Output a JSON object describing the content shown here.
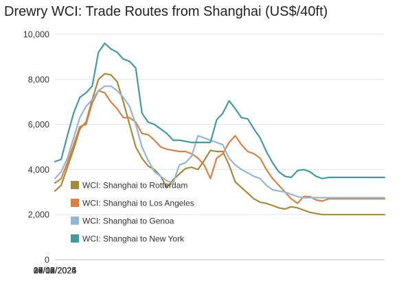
{
  "chart_data": {
    "type": "line",
    "title": "Drewry WCI: Trade Routes from Shanghai (US$/40ft)",
    "xlabel": "",
    "ylabel": "",
    "ylim": [
      0,
      10000
    ],
    "grid": true,
    "legend_position": "bottom-left",
    "y_ticks": [
      "0",
      "2,000",
      "4,000",
      "6,000",
      "8,000",
      "10,000"
    ],
    "x_ticks": [
      "06/05/2024",
      "03/07/2024",
      "30/08/2024",
      "27/10/2024",
      "24/12/2024",
      "19/02/2025",
      "18/04/2025"
    ],
    "x": [
      "06/05/2024",
      "13/05/2024",
      "20/05/2024",
      "27/05/2024",
      "03/06/2024",
      "10/06/2024",
      "17/06/2024",
      "24/06/2024",
      "01/07/2024",
      "08/07/2024",
      "15/07/2024",
      "22/07/2024",
      "29/07/2024",
      "05/08/2024",
      "12/08/2024",
      "19/08/2024",
      "26/08/2024",
      "02/09/2024",
      "09/09/2024",
      "16/09/2024",
      "23/09/2024",
      "30/09/2024",
      "07/10/2024",
      "14/10/2024",
      "21/10/2024",
      "28/10/2024",
      "04/11/2024",
      "11/11/2024",
      "18/11/2024",
      "25/11/2024",
      "02/12/2024",
      "09/12/2024",
      "16/12/2024",
      "23/12/2024",
      "30/12/2024",
      "06/01/2025",
      "13/01/2025",
      "20/01/2025",
      "27/01/2025",
      "03/02/2025",
      "10/02/2025",
      "17/02/2025",
      "24/02/2025",
      "03/03/2025",
      "10/03/2025",
      "17/03/2025",
      "24/03/2025",
      "31/03/2025",
      "07/04/2025",
      "14/04/2025",
      "21/04/2025",
      "28/04/2025",
      "05/05/2025",
      "12/05/2025"
    ],
    "series": [
      {
        "name": "WCI: Shanghai to Rotterdam",
        "color": "#a68a35",
        "values": [
          3050,
          3300,
          4100,
          4900,
          5800,
          6100,
          7100,
          8000,
          8250,
          8200,
          7900,
          7000,
          6000,
          5000,
          4500,
          4150,
          4000,
          3700,
          3200,
          3550,
          3800,
          4050,
          4100,
          4000,
          4400,
          4850,
          4800,
          4800,
          4200,
          3450,
          3200,
          2950,
          2700,
          2550,
          2500,
          2400,
          2300,
          2250,
          2350,
          2300,
          2200,
          2100,
          2050,
          2000,
          2000,
          2000,
          2000,
          2000,
          2000,
          2000,
          2000,
          2000,
          2000,
          2000
        ]
      },
      {
        "name": "WCI: Shanghai to Los Angeles",
        "color": "#de7f3e",
        "values": [
          3400,
          3600,
          4300,
          5100,
          5900,
          6000,
          6950,
          7500,
          7400,
          7000,
          6700,
          6300,
          6300,
          6100,
          5600,
          5550,
          5300,
          5000,
          4900,
          4850,
          4800,
          4800,
          4700,
          4500,
          4200,
          3600,
          4500,
          4700,
          5200,
          5500,
          5100,
          4800,
          4700,
          4500,
          4000,
          3600,
          3300,
          3000,
          2700,
          2500,
          2800,
          2800,
          2650,
          2600,
          2700,
          2700,
          2700,
          2700,
          2700,
          2700,
          2700,
          2700,
          2700,
          2700
        ]
      },
      {
        "name": "WCI: Shanghai to Genoa",
        "color": "#92b6d8",
        "values": [
          3600,
          3900,
          4500,
          5400,
          6300,
          6800,
          7100,
          7500,
          7700,
          7700,
          7500,
          7200,
          6800,
          6000,
          5000,
          4400,
          3900,
          3700,
          3500,
          3400,
          4200,
          4300,
          4600,
          5500,
          5400,
          5300,
          5200,
          5100,
          4500,
          4200,
          4000,
          3850,
          3700,
          3600,
          3300,
          3100,
          3050,
          3000,
          2900,
          2800,
          2750,
          2750,
          2750,
          2750,
          2750,
          2750,
          2750,
          2750,
          2750,
          2750,
          2750,
          2750,
          2750,
          2750
        ]
      },
      {
        "name": "WCI: Shanghai to New York",
        "color": "#3e9c9e",
        "values": [
          4350,
          4450,
          5500,
          6500,
          7200,
          7400,
          7700,
          9200,
          9600,
          9350,
          9200,
          8900,
          8800,
          8500,
          6500,
          6100,
          6000,
          5800,
          5600,
          5300,
          5300,
          5250,
          5200,
          5200,
          5200,
          5200,
          6200,
          6500,
          7050,
          6700,
          6300,
          6250,
          5800,
          5400,
          4800,
          4300,
          3900,
          3700,
          3650,
          3950,
          4000,
          3900,
          3700,
          3600,
          3650,
          3650,
          3650,
          3650,
          3650,
          3650,
          3650,
          3650,
          3650,
          3650
        ]
      }
    ]
  }
}
